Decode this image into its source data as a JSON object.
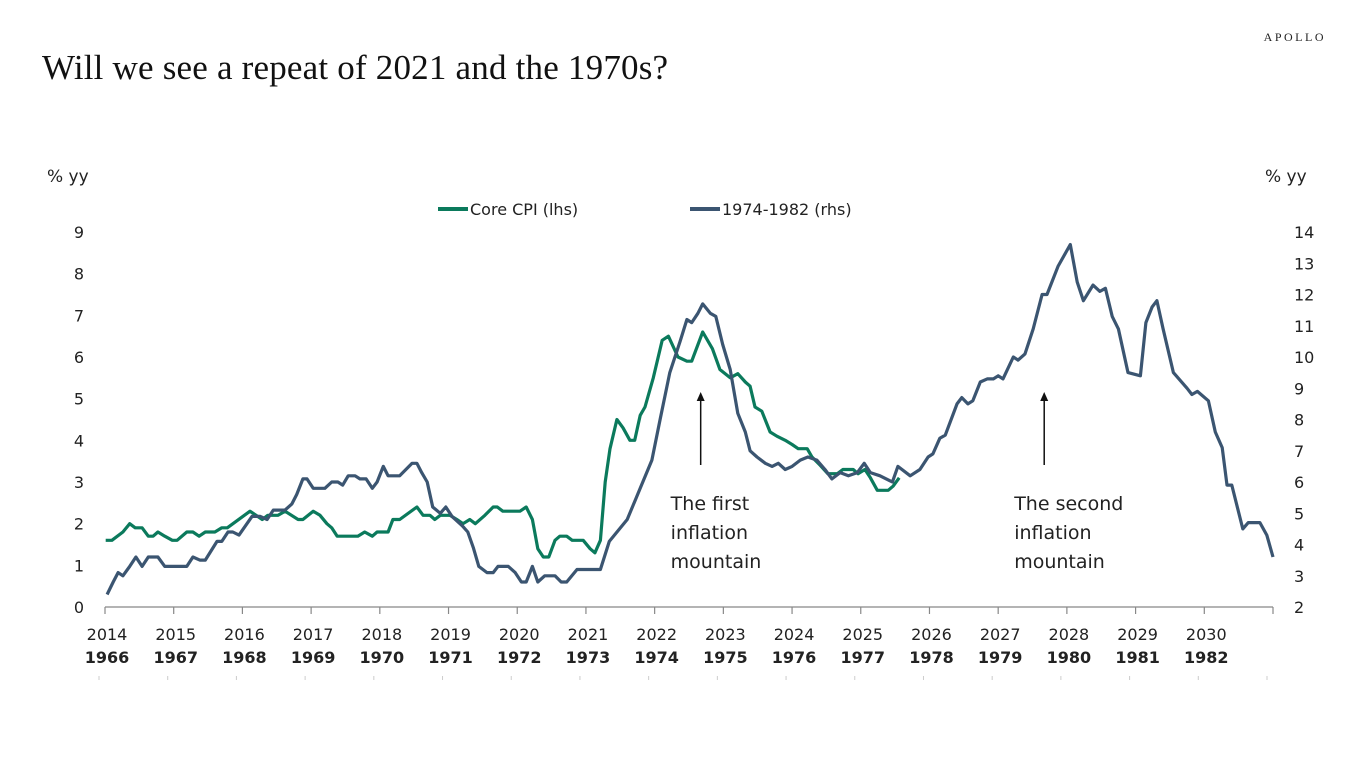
{
  "title": "Will we see a repeat of 2021 and the 1970s?",
  "logo": "APOLLO",
  "chart_data": {
    "type": "line",
    "title": "Will we see a repeat of 2021 and the 1970s?",
    "left_unit": "% yy",
    "right_unit": "% yy",
    "y_left": {
      "lim": [
        0,
        9
      ],
      "ticks": [
        "0",
        "1",
        "2",
        "3",
        "4",
        "5",
        "6",
        "7",
        "8",
        "9"
      ]
    },
    "y_right": {
      "lim": [
        2,
        14
      ],
      "ticks": [
        "2",
        "3",
        "4",
        "5",
        "6",
        "7",
        "8",
        "9",
        "10",
        "11",
        "12",
        "13",
        "14"
      ]
    },
    "x_axis": {
      "top_labels": [
        "2014",
        "2015",
        "2016",
        "2017",
        "2018",
        "2019",
        "2020",
        "2021",
        "2022",
        "2023",
        "2024",
        "2025",
        "2026",
        "2027",
        "2028",
        "2029",
        "2030"
      ],
      "bottom_labels": [
        "1966",
        "1967",
        "1968",
        "1969",
        "1970",
        "1971",
        "1972",
        "1973",
        "1974",
        "1975",
        "1976",
        "1977",
        "1978",
        "1979",
        "1980",
        "1981",
        "1982"
      ],
      "top_range": [
        2014,
        2031
      ],
      "bottom_range": [
        1966,
        1983
      ]
    },
    "grid": false,
    "legend_position": "top-center",
    "series": [
      {
        "name": "Core CPI (lhs)",
        "axis": "left",
        "x_axis": "top",
        "color": "#0b7a5c",
        "points": [
          [
            2014.01,
            1.6
          ],
          [
            2014.1,
            1.6
          ],
          [
            2014.26,
            1.8
          ],
          [
            2014.36,
            2.0
          ],
          [
            2014.44,
            1.9
          ],
          [
            2014.54,
            1.9
          ],
          [
            2014.63,
            1.7
          ],
          [
            2014.7,
            1.7
          ],
          [
            2014.77,
            1.8
          ],
          [
            2014.87,
            1.7
          ],
          [
            2014.98,
            1.6
          ],
          [
            2015.05,
            1.6
          ],
          [
            2015.19,
            1.8
          ],
          [
            2015.28,
            1.8
          ],
          [
            2015.37,
            1.7
          ],
          [
            2015.46,
            1.8
          ],
          [
            2015.6,
            1.8
          ],
          [
            2015.7,
            1.9
          ],
          [
            2015.78,
            1.9
          ],
          [
            2016.11,
            2.3
          ],
          [
            2016.29,
            2.1
          ],
          [
            2016.37,
            2.2
          ],
          [
            2016.52,
            2.2
          ],
          [
            2016.62,
            2.3
          ],
          [
            2016.81,
            2.1
          ],
          [
            2016.88,
            2.1
          ],
          [
            2017.03,
            2.3
          ],
          [
            2017.13,
            2.2
          ],
          [
            2017.23,
            2.0
          ],
          [
            2017.3,
            1.9
          ],
          [
            2017.38,
            1.7
          ],
          [
            2017.68,
            1.7
          ],
          [
            2017.78,
            1.8
          ],
          [
            2017.89,
            1.7
          ],
          [
            2017.96,
            1.8
          ],
          [
            2018.12,
            1.8
          ],
          [
            2018.19,
            2.1
          ],
          [
            2018.29,
            2.1
          ],
          [
            2018.54,
            2.4
          ],
          [
            2018.63,
            2.2
          ],
          [
            2018.73,
            2.2
          ],
          [
            2018.8,
            2.1
          ],
          [
            2018.88,
            2.2
          ],
          [
            2019.02,
            2.2
          ],
          [
            2019.12,
            2.1
          ],
          [
            2019.21,
            2.0
          ],
          [
            2019.31,
            2.1
          ],
          [
            2019.39,
            2.0
          ],
          [
            2019.53,
            2.2
          ],
          [
            2019.65,
            2.4
          ],
          [
            2019.71,
            2.4
          ],
          [
            2019.79,
            2.3
          ],
          [
            2020.04,
            2.3
          ],
          [
            2020.13,
            2.4
          ],
          [
            2020.22,
            2.1
          ],
          [
            2020.3,
            1.4
          ],
          [
            2020.38,
            1.2
          ],
          [
            2020.46,
            1.2
          ],
          [
            2020.55,
            1.6
          ],
          [
            2020.62,
            1.7
          ],
          [
            2020.72,
            1.7
          ],
          [
            2020.8,
            1.6
          ],
          [
            2020.96,
            1.6
          ],
          [
            2021.06,
            1.4
          ],
          [
            2021.13,
            1.3
          ],
          [
            2021.21,
            1.6
          ],
          [
            2021.28,
            3.0
          ],
          [
            2021.35,
            3.8
          ],
          [
            2021.45,
            4.5
          ],
          [
            2021.54,
            4.3
          ],
          [
            2021.64,
            4.0
          ],
          [
            2021.71,
            4.0
          ],
          [
            2021.79,
            4.6
          ],
          [
            2021.86,
            4.8
          ],
          [
            2021.98,
            5.5
          ],
          [
            2022.11,
            6.4
          ],
          [
            2022.2,
            6.5
          ],
          [
            2022.34,
            6.0
          ],
          [
            2022.47,
            5.9
          ],
          [
            2022.54,
            5.9
          ],
          [
            2022.7,
            6.6
          ],
          [
            2022.84,
            6.2
          ],
          [
            2022.95,
            5.7
          ],
          [
            2023.1,
            5.5
          ],
          [
            2023.21,
            5.6
          ],
          [
            2023.32,
            5.4
          ],
          [
            2023.39,
            5.3
          ],
          [
            2023.46,
            4.8
          ],
          [
            2023.56,
            4.7
          ],
          [
            2023.68,
            4.2
          ],
          [
            2023.78,
            4.1
          ],
          [
            2023.9,
            4.0
          ],
          [
            2024.0,
            3.9
          ],
          [
            2024.09,
            3.8
          ],
          [
            2024.22,
            3.8
          ],
          [
            2024.29,
            3.6
          ],
          [
            2024.41,
            3.4
          ],
          [
            2024.52,
            3.2
          ],
          [
            2024.66,
            3.2
          ],
          [
            2024.74,
            3.3
          ],
          [
            2024.89,
            3.3
          ],
          [
            2024.96,
            3.2
          ],
          [
            2025.06,
            3.3
          ],
          [
            2025.14,
            3.1
          ],
          [
            2025.24,
            2.8
          ],
          [
            2025.4,
            2.8
          ],
          [
            2025.47,
            2.9
          ],
          [
            2025.56,
            3.1
          ]
        ]
      },
      {
        "name": "1974-1982 (rhs)",
        "axis": "right",
        "x_axis": "bottom",
        "color": "#3b5571",
        "points": [
          [
            1966.03,
            2.4
          ],
          [
            1966.12,
            2.8
          ],
          [
            1966.19,
            3.1
          ],
          [
            1966.26,
            3.0
          ],
          [
            1966.36,
            3.3
          ],
          [
            1966.45,
            3.6
          ],
          [
            1966.54,
            3.3
          ],
          [
            1966.63,
            3.6
          ],
          [
            1966.77,
            3.6
          ],
          [
            1966.87,
            3.3
          ],
          [
            1967.19,
            3.3
          ],
          [
            1967.28,
            3.6
          ],
          [
            1967.38,
            3.5
          ],
          [
            1967.46,
            3.5
          ],
          [
            1967.63,
            4.1
          ],
          [
            1967.7,
            4.1
          ],
          [
            1967.79,
            4.4
          ],
          [
            1967.86,
            4.4
          ],
          [
            1967.95,
            4.3
          ],
          [
            1968.14,
            4.9
          ],
          [
            1968.26,
            4.9
          ],
          [
            1968.36,
            4.8
          ],
          [
            1968.45,
            5.1
          ],
          [
            1968.62,
            5.1
          ],
          [
            1968.72,
            5.3
          ],
          [
            1968.79,
            5.6
          ],
          [
            1968.88,
            6.1
          ],
          [
            1968.94,
            6.1
          ],
          [
            1969.03,
            5.8
          ],
          [
            1969.2,
            5.8
          ],
          [
            1969.3,
            6.0
          ],
          [
            1969.39,
            6.0
          ],
          [
            1969.46,
            5.9
          ],
          [
            1969.54,
            6.2
          ],
          [
            1969.64,
            6.2
          ],
          [
            1969.71,
            6.1
          ],
          [
            1969.8,
            6.1
          ],
          [
            1969.89,
            5.8
          ],
          [
            1969.96,
            6.0
          ],
          [
            1970.05,
            6.5
          ],
          [
            1970.12,
            6.2
          ],
          [
            1970.29,
            6.2
          ],
          [
            1970.47,
            6.6
          ],
          [
            1970.54,
            6.6
          ],
          [
            1970.61,
            6.3
          ],
          [
            1970.69,
            6.0
          ],
          [
            1970.77,
            5.2
          ],
          [
            1970.88,
            5.0
          ],
          [
            1970.96,
            5.2
          ],
          [
            1971.05,
            4.9
          ],
          [
            1971.2,
            4.6
          ],
          [
            1971.28,
            4.4
          ],
          [
            1971.36,
            3.9
          ],
          [
            1971.44,
            3.3
          ],
          [
            1971.56,
            3.1
          ],
          [
            1971.65,
            3.1
          ],
          [
            1971.72,
            3.3
          ],
          [
            1971.87,
            3.3
          ],
          [
            1971.97,
            3.1
          ],
          [
            1972.06,
            2.8
          ],
          [
            1972.13,
            2.8
          ],
          [
            1972.22,
            3.3
          ],
          [
            1972.3,
            2.8
          ],
          [
            1972.4,
            3.0
          ],
          [
            1972.55,
            3.0
          ],
          [
            1972.64,
            2.8
          ],
          [
            1972.72,
            2.8
          ],
          [
            1972.87,
            3.2
          ],
          [
            1973.21,
            3.2
          ],
          [
            1973.34,
            4.1
          ],
          [
            1973.6,
            4.8
          ],
          [
            1973.79,
            5.8
          ],
          [
            1973.96,
            6.7
          ],
          [
            1974.08,
            8.0
          ],
          [
            1974.22,
            9.5
          ],
          [
            1974.37,
            10.5
          ],
          [
            1974.47,
            11.2
          ],
          [
            1974.54,
            11.1
          ],
          [
            1974.63,
            11.4
          ],
          [
            1974.7,
            11.7
          ],
          [
            1974.81,
            11.4
          ],
          [
            1974.89,
            11.3
          ],
          [
            1974.99,
            10.4
          ],
          [
            1975.1,
            9.6
          ],
          [
            1975.21,
            8.2
          ],
          [
            1975.32,
            7.6
          ],
          [
            1975.39,
            7.0
          ],
          [
            1975.49,
            6.8
          ],
          [
            1975.61,
            6.6
          ],
          [
            1975.71,
            6.5
          ],
          [
            1975.8,
            6.6
          ],
          [
            1975.9,
            6.4
          ],
          [
            1976.0,
            6.5
          ],
          [
            1976.12,
            6.7
          ],
          [
            1976.23,
            6.8
          ],
          [
            1976.36,
            6.7
          ],
          [
            1976.48,
            6.4
          ],
          [
            1976.58,
            6.1
          ],
          [
            1976.7,
            6.3
          ],
          [
            1976.82,
            6.2
          ],
          [
            1976.95,
            6.3
          ],
          [
            1977.05,
            6.6
          ],
          [
            1977.14,
            6.3
          ],
          [
            1977.28,
            6.2
          ],
          [
            1977.46,
            6.0
          ],
          [
            1977.54,
            6.5
          ],
          [
            1977.72,
            6.2
          ],
          [
            1977.86,
            6.4
          ],
          [
            1977.98,
            6.8
          ],
          [
            1978.05,
            6.9
          ],
          [
            1978.15,
            7.4
          ],
          [
            1978.23,
            7.5
          ],
          [
            1978.4,
            8.5
          ],
          [
            1978.47,
            8.7
          ],
          [
            1978.56,
            8.5
          ],
          [
            1978.63,
            8.6
          ],
          [
            1978.74,
            9.2
          ],
          [
            1978.84,
            9.3
          ],
          [
            1978.93,
            9.3
          ],
          [
            1979.0,
            9.4
          ],
          [
            1979.07,
            9.3
          ],
          [
            1979.22,
            10.0
          ],
          [
            1979.29,
            9.9
          ],
          [
            1979.39,
            10.1
          ],
          [
            1979.51,
            10.9
          ],
          [
            1979.64,
            12.0
          ],
          [
            1979.71,
            12.0
          ],
          [
            1979.87,
            12.9
          ],
          [
            1980.05,
            13.6
          ],
          [
            1980.15,
            12.4
          ],
          [
            1980.24,
            11.8
          ],
          [
            1980.38,
            12.3
          ],
          [
            1980.48,
            12.1
          ],
          [
            1980.56,
            12.2
          ],
          [
            1980.66,
            11.3
          ],
          [
            1980.75,
            10.9
          ],
          [
            1980.89,
            9.5
          ],
          [
            1981.07,
            9.4
          ],
          [
            1981.15,
            11.1
          ],
          [
            1981.24,
            11.6
          ],
          [
            1981.31,
            11.8
          ],
          [
            1981.4,
            10.9
          ],
          [
            1981.55,
            9.5
          ],
          [
            1981.75,
            9.0
          ],
          [
            1981.82,
            8.8
          ],
          [
            1981.9,
            8.9
          ],
          [
            1982.06,
            8.6
          ],
          [
            1982.16,
            7.6
          ],
          [
            1982.26,
            7.1
          ],
          [
            1982.33,
            5.9
          ],
          [
            1982.4,
            5.9
          ],
          [
            1982.56,
            4.5
          ],
          [
            1982.64,
            4.7
          ],
          [
            1982.81,
            4.7
          ],
          [
            1982.91,
            4.3
          ],
          [
            1983.0,
            3.6
          ]
        ]
      }
    ],
    "annotations": [
      {
        "lines": [
          "The first",
          "inflation",
          "mountain"
        ],
        "x_top": 2022.67
      },
      {
        "lines": [
          "The second",
          "inflation",
          "mountain"
        ],
        "x_top": 2027.67
      }
    ]
  }
}
